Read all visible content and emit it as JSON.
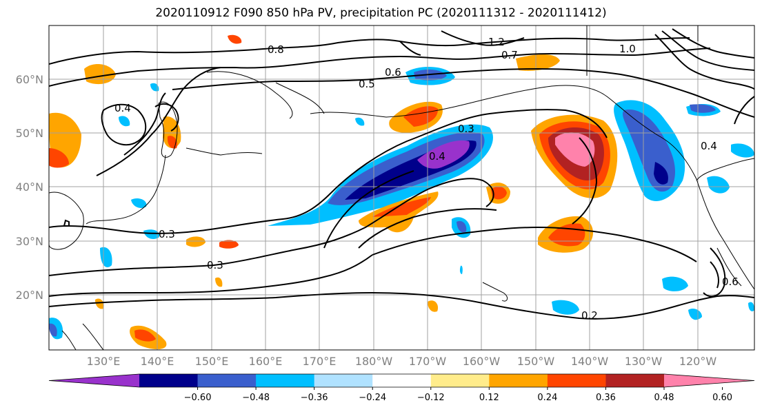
{
  "title": "2020110912 F090 850 hPa PV, precipitation PC (2020111312 - 2020111412)",
  "lat_labels": [
    "60°N",
    "50°N",
    "40°N",
    "30°N",
    "20°N"
  ],
  "lon_labels": [
    "130°E",
    "140°E",
    "150°E",
    "160°E",
    "170°E",
    "180°W",
    "170°W",
    "160°W",
    "150°W",
    "140°W",
    "130°W",
    "120°W"
  ],
  "contour_labels": [
    "0.8",
    "1.2",
    "0.7",
    "1.0",
    "0.6",
    "0.5",
    "0.4",
    "0.3",
    "0.4",
    "0.3",
    "0.3",
    "0.2",
    "0.6",
    "0.4"
  ],
  "colorbar": {
    "ticks": [
      "−0.60",
      "−0.48",
      "−0.36",
      "−0.24",
      "−0.12",
      "0.12",
      "0.24",
      "0.36",
      "0.48",
      "0.60"
    ],
    "colors": [
      "#9932cc",
      "#00008b",
      "#3a5fcd",
      "#00bfff",
      "#b0e2ff",
      "#ffffff",
      "#ffec8b",
      "#ffa500",
      "#ff4500",
      "#b22222",
      "#ff82ab"
    ]
  }
}
